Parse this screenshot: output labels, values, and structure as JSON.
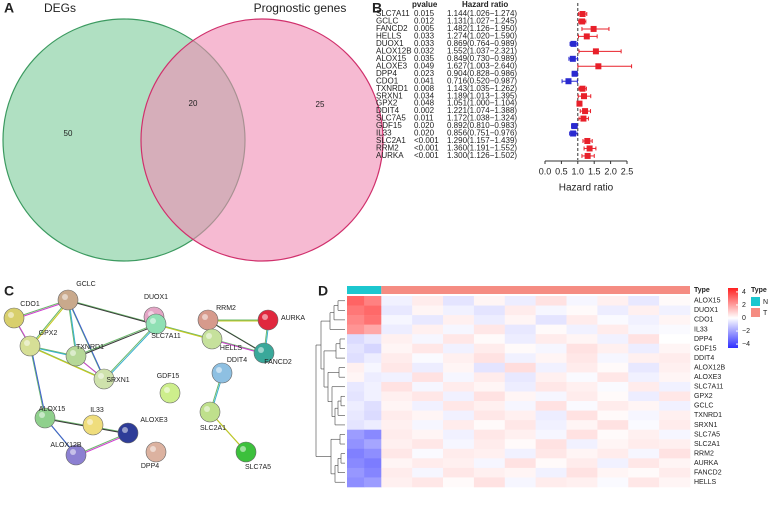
{
  "panel_labels": [
    "A",
    "B",
    "C",
    "D"
  ],
  "chart_data": [
    {
      "type": "venn",
      "sets": [
        {
          "name": "DEGs",
          "color": "#7ccc9a",
          "stroke": "#3c9a60"
        },
        {
          "name": "Prognostic genes",
          "color": "#f08cb4",
          "stroke": "#d0306c"
        }
      ],
      "values": [
        50,
        20,
        25
      ]
    },
    {
      "type": "forest",
      "headers": [
        "pvalue",
        "Hazard ratio"
      ],
      "categories": [
        "SLC7A11",
        "GCLC",
        "FANCD2",
        "HELLS",
        "DUOX1",
        "ALOX12B",
        "ALOX15",
        "ALOXE3",
        "DPP4",
        "CDO1",
        "TXNRD1",
        "SRXN1",
        "GPX2",
        "DDIT4",
        "SLC7A5",
        "GDF15",
        "IL33",
        "SLC2A1",
        "RRM2",
        "AURKA"
      ],
      "pvalues": [
        "0.015",
        "0.012",
        "0.005",
        "0.033",
        "0.033",
        "0.032",
        "0.035",
        "0.049",
        "0.023",
        "0.041",
        "0.008",
        "0.034",
        "0.048",
        "0.002",
        "0.011",
        "0.020",
        "0.020",
        "<0.001",
        "<0.001",
        "<0.001"
      ],
      "values": [
        1.144,
        1.131,
        1.482,
        1.274,
        0.869,
        1.552,
        0.849,
        1.627,
        0.904,
        0.716,
        1.143,
        1.189,
        1.051,
        1.221,
        1.172,
        0.892,
        0.856,
        1.29,
        1.36,
        1.3
      ],
      "lower": [
        1.026,
        1.027,
        1.126,
        1.02,
        0.764,
        1.037,
        0.73,
        1.003,
        0.828,
        0.52,
        1.035,
        1.013,
        1.0,
        1.074,
        1.038,
        0.81,
        0.751,
        1.157,
        1.191,
        1.126
      ],
      "upper": [
        1.274,
        1.245,
        1.95,
        1.59,
        0.989,
        2.321,
        0.989,
        2.64,
        0.986,
        0.987,
        1.262,
        1.395,
        1.104,
        1.388,
        1.324,
        0.983,
        0.976,
        1.439,
        1.552,
        1.502
      ],
      "value_labels": [
        "1.144(1.026−1.274)",
        "1.131(1.027−1.245)",
        "1.482(1.126−1.950)",
        "1.274(1.020−1.590)",
        "0.869(0.764−0.989)",
        "1.552(1.037−2.321)",
        "0.849(0.730−0.989)",
        "1.627(1.003−2.640)",
        "0.904(0.828−0.986)",
        "0.716(0.520−0.987)",
        "1.143(1.035−1.262)",
        "1.189(1.013−1.395)",
        "1.051(1.000−1.104)",
        "1.221(1.074−1.388)",
        "1.172(1.038−1.324)",
        "0.892(0.810−0.983)",
        "0.856(0.751−0.976)",
        "1.290(1.157−1.439)",
        "1.360(1.191−1.552)",
        "1.300(1.126−1.502)"
      ],
      "reference": 1,
      "color_above": "#e8202a",
      "color_below": "#2a2ad0",
      "xlabel": "Hazard ratio",
      "xlim": [
        0,
        2.5
      ],
      "xticks": [
        {
          "value": 0,
          "label": "0.0"
        },
        0.5,
        {
          "value": 1,
          "label": "1.0"
        },
        1.5,
        {
          "value": 2,
          "label": "2.0"
        },
        2.5
      ]
    },
    {
      "type": "heatmap",
      "rows": [
        "ALOX15",
        "DUOX1",
        "CDO1",
        "IL33",
        "DPP4",
        "GDF15",
        "DDIT4",
        "ALOX12B",
        "ALOXE3",
        "SLC7A11",
        "GPX2",
        "GCLC",
        "TXNRD1",
        "SRXN1",
        "SLC7A5",
        "SLC2A1",
        "RRM2",
        "AURKA",
        "FANCD2",
        "HELLS"
      ],
      "legend_title": "Type",
      "series": [
        {
          "name": "N",
          "color": "#1cc7cf",
          "values": [
            [
              3.2,
              2.6
            ],
            [
              2.8,
              3.1
            ],
            [
              2.5,
              2.9
            ],
            [
              2.2,
              1.8
            ],
            [
              -0.8,
              -0.5
            ],
            [
              -0.6,
              -0.9
            ],
            [
              -0.7,
              -0.4
            ],
            [
              0.3,
              -0.2
            ],
            [
              0.2,
              -0.4
            ],
            [
              -0.5,
              -0.3
            ],
            [
              -0.6,
              -0.3
            ],
            [
              -0.4,
              -0.7
            ],
            [
              -0.5,
              -0.8
            ],
            [
              -0.6,
              -0.4
            ],
            [
              -2.2,
              -2.6
            ],
            [
              -2.4,
              -2.0
            ],
            [
              -2.8,
              -2.5
            ],
            [
              -2.6,
              -2.9
            ],
            [
              -2.3,
              -2.7
            ],
            [
              -2.5,
              -2.2
            ]
          ]
        },
        {
          "name": "T",
          "color": "#f58c82",
          "values": [
            [
              -0.3,
              0.4,
              -0.6,
              0.2,
              -0.4,
              0.6,
              -0.2,
              0.3,
              -0.5,
              0.1
            ],
            [
              -0.5,
              0.2,
              -0.3,
              -0.6,
              0.4,
              -0.2,
              0.1,
              -0.4,
              0.3,
              -0.3
            ],
            [
              -0.2,
              -0.5,
              0.3,
              -0.4,
              0.2,
              -0.6,
              0.4,
              -0.1,
              -0.3,
              0.2
            ],
            [
              -0.4,
              0.3,
              -0.2,
              0.5,
              -0.5,
              0.1,
              -0.3,
              0.4,
              -0.2,
              -0.1
            ],
            [
              0.3,
              -0.2,
              0.5,
              0.1,
              -0.4,
              0.4,
              0.2,
              -0.3,
              0.6,
              0.0
            ],
            [
              0.2,
              0.5,
              -0.3,
              0.4,
              0.1,
              -0.2,
              0.6,
              0.3,
              -0.4,
              0.2
            ],
            [
              0.4,
              -0.1,
              0.3,
              0.6,
              -0.3,
              0.2,
              0.5,
              -0.2,
              0.3,
              0.4
            ],
            [
              0.5,
              -0.4,
              0.2,
              -0.6,
              0.7,
              -0.3,
              0.4,
              0.1,
              -0.5,
              0.3
            ],
            [
              -0.3,
              0.6,
              -0.2,
              0.4,
              -0.5,
              0.3,
              -0.1,
              0.5,
              -0.3,
              0.2
            ],
            [
              0.6,
              -0.2,
              0.4,
              0.2,
              -0.4,
              0.5,
              0.3,
              -0.1,
              0.4,
              -0.3
            ],
            [
              0.3,
              0.5,
              -0.3,
              0.6,
              0.2,
              -0.2,
              0.4,
              0.1,
              -0.4,
              0.5
            ],
            [
              0.2,
              -0.3,
              0.5,
              0.3,
              -0.2,
              0.6,
              -0.1,
              0.4,
              0.2,
              -0.3
            ],
            [
              0.4,
              0.2,
              -0.3,
              0.5,
              0.3,
              -0.4,
              0.6,
              0.1,
              -0.2,
              0.3
            ],
            [
              0.3,
              -0.2,
              0.4,
              0.1,
              0.5,
              -0.3,
              0.2,
              0.6,
              -0.1,
              0.4
            ],
            [
              0.4,
              0.2,
              -0.3,
              0.5,
              0.3,
              -0.2,
              0.6,
              0.1,
              0.3,
              -0.2
            ],
            [
              0.3,
              0.5,
              -0.2,
              0.4,
              0.1,
              0.6,
              -0.3,
              0.2,
              0.4,
              0.3
            ],
            [
              0.5,
              -0.1,
              0.4,
              0.3,
              -0.3,
              0.5,
              0.2,
              0.4,
              -0.2,
              0.6
            ],
            [
              0.2,
              0.4,
              0.3,
              -0.2,
              0.6,
              0.1,
              0.4,
              -0.3,
              0.5,
              0.2
            ],
            [
              0.4,
              -0.2,
              0.5,
              0.3,
              0.2,
              -0.3,
              0.6,
              0.2,
              0.1,
              0.4
            ],
            [
              0.3,
              0.5,
              0.1,
              0.6,
              -0.2,
              0.4,
              0.3,
              -0.1,
              0.5,
              0.2
            ]
          ]
        }
      ],
      "colors": [
        "#2f2fff",
        "#ffffff",
        "#ff2020"
      ],
      "zlim": [
        -4.6,
        4.6
      ],
      "zticks": [
        4,
        2,
        0,
        {
          "value": -2,
          "label": "−2"
        },
        {
          "value": -4,
          "label": "−4"
        }
      ]
    }
  ],
  "network": {
    "nodes": [
      "CDO1",
      "GCLC",
      "DUOX1",
      "RRM2",
      "AURKA",
      "TXNRD1",
      "SLC7A11",
      "GPX2",
      "HELLS",
      "FANCD2",
      "SRXN1",
      "GDF15",
      "DDIT4",
      "ALOX15",
      "IL33",
      "ALOXE3",
      "ALOX12B",
      "DPP4",
      "SLC2A1",
      "SLC7A5"
    ]
  }
}
